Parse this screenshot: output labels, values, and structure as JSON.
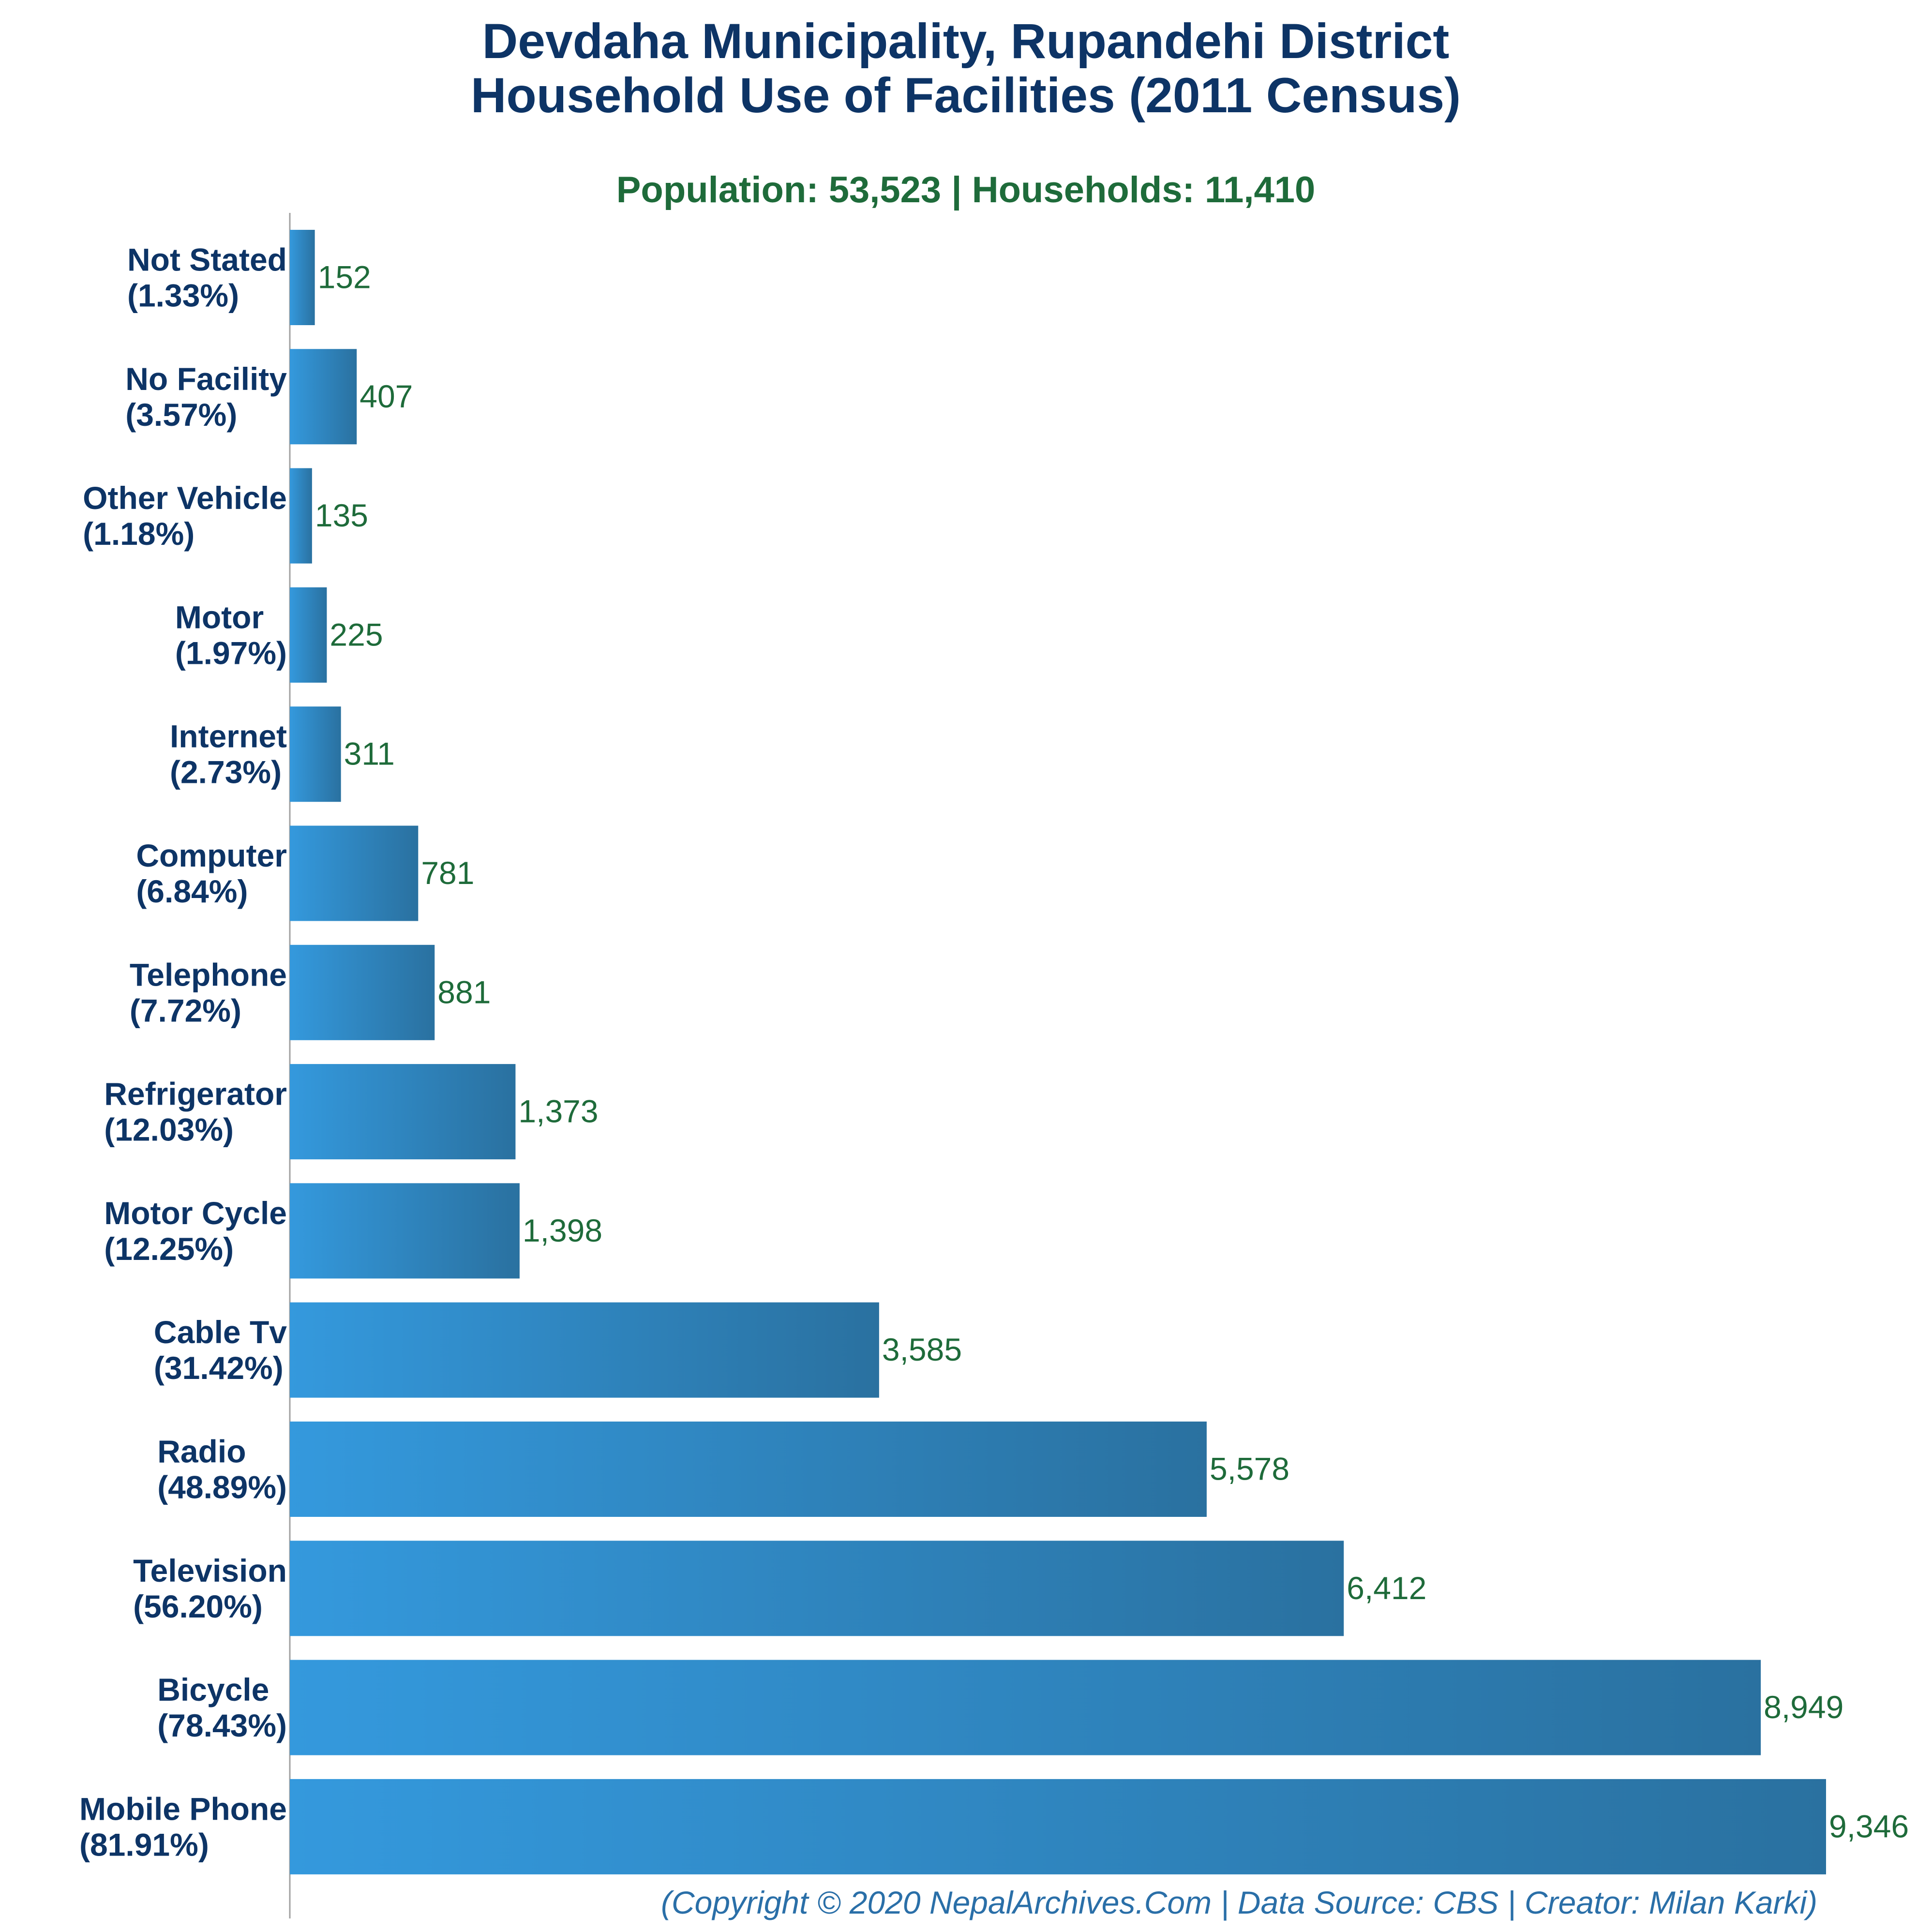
{
  "colors": {
    "title": "#0d3466",
    "subtitle": "#1e6b3a",
    "value_label": "#1e6b3a",
    "category_label": "#0d3466",
    "bar_light": "#3499dd",
    "bar_dark": "#2a71a0",
    "axis": "#a0a0a0",
    "footer": "#2a6fa8"
  },
  "chart_data": {
    "type": "bar",
    "orientation": "horizontal",
    "title": "Devdaha Municipality, Rupandehi District",
    "title_line2": "Household Use of Facilities (2011 Census)",
    "subtitle": "Population: 53,523 | Households: 11,410",
    "xlim": [
      0,
      9346
    ],
    "grid": false,
    "categories": [
      {
        "name": "Not Stated",
        "pct": "(1.33%)",
        "value": 152,
        "value_label": "152"
      },
      {
        "name": "No Facility",
        "pct": "(3.57%)",
        "value": 407,
        "value_label": "407"
      },
      {
        "name": "Other Vehicle",
        "pct": "(1.18%)",
        "value": 135,
        "value_label": "135"
      },
      {
        "name": "Motor",
        "pct": "(1.97%)",
        "value": 225,
        "value_label": "225"
      },
      {
        "name": "Internet",
        "pct": "(2.73%)",
        "value": 311,
        "value_label": "311"
      },
      {
        "name": "Computer",
        "pct": "(6.84%)",
        "value": 781,
        "value_label": "781"
      },
      {
        "name": "Telephone",
        "pct": "(7.72%)",
        "value": 881,
        "value_label": "881"
      },
      {
        "name": "Refrigerator",
        "pct": "(12.03%)",
        "value": 1373,
        "value_label": "1,373"
      },
      {
        "name": "Motor Cycle",
        "pct": "(12.25%)",
        "value": 1398,
        "value_label": "1,398"
      },
      {
        "name": "Cable Tv",
        "pct": "(31.42%)",
        "value": 3585,
        "value_label": "3,585"
      },
      {
        "name": "Radio",
        "pct": "(48.89%)",
        "value": 5578,
        "value_label": "5,578"
      },
      {
        "name": "Television",
        "pct": "(56.20%)",
        "value": 6412,
        "value_label": "6,412"
      },
      {
        "name": "Bicycle",
        "pct": "(78.43%)",
        "value": 8949,
        "value_label": "8,949"
      },
      {
        "name": "Mobile Phone",
        "pct": "(81.91%)",
        "value": 9346,
        "value_label": "9,346"
      }
    ],
    "footer": "(Copyright © 2020 NepalArchives.Com | Data Source: CBS | Creator: Milan Karki)"
  }
}
